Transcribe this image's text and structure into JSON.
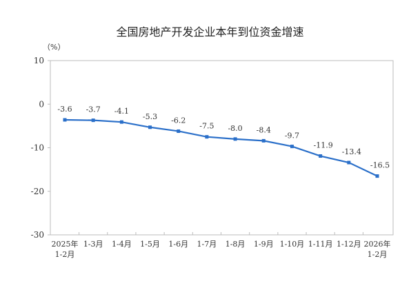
{
  "chart_data": {
    "type": "line",
    "title": "全国房地产开发企业本年到位资金增速",
    "ylabel": "（%）",
    "categories": [
      "2025年\n1-2月",
      "1-3月",
      "1-4月",
      "1-5月",
      "1-6月",
      "1-7月",
      "1-8月",
      "1-9月",
      "1-10月",
      "1-11月",
      "1-12月",
      "2026年\n1-2月"
    ],
    "values": [
      -3.6,
      -3.7,
      -4.1,
      -5.3,
      -6.2,
      -7.5,
      -8.0,
      -8.4,
      -9.7,
      -11.9,
      -13.4,
      -16.5
    ],
    "data_labels": [
      "-3.6",
      "-3.7",
      "-4.1",
      "-5.3",
      "-6.2",
      "-7.5",
      "-8.0",
      "-8.4",
      "-9.7",
      "-11.9",
      "-13.4",
      "-16.5"
    ],
    "ylim": [
      -30,
      10
    ],
    "yticks": [
      "10",
      "0",
      "-10",
      "-20",
      "-30"
    ],
    "grid": false,
    "line_color": "#2a6fc9"
  }
}
